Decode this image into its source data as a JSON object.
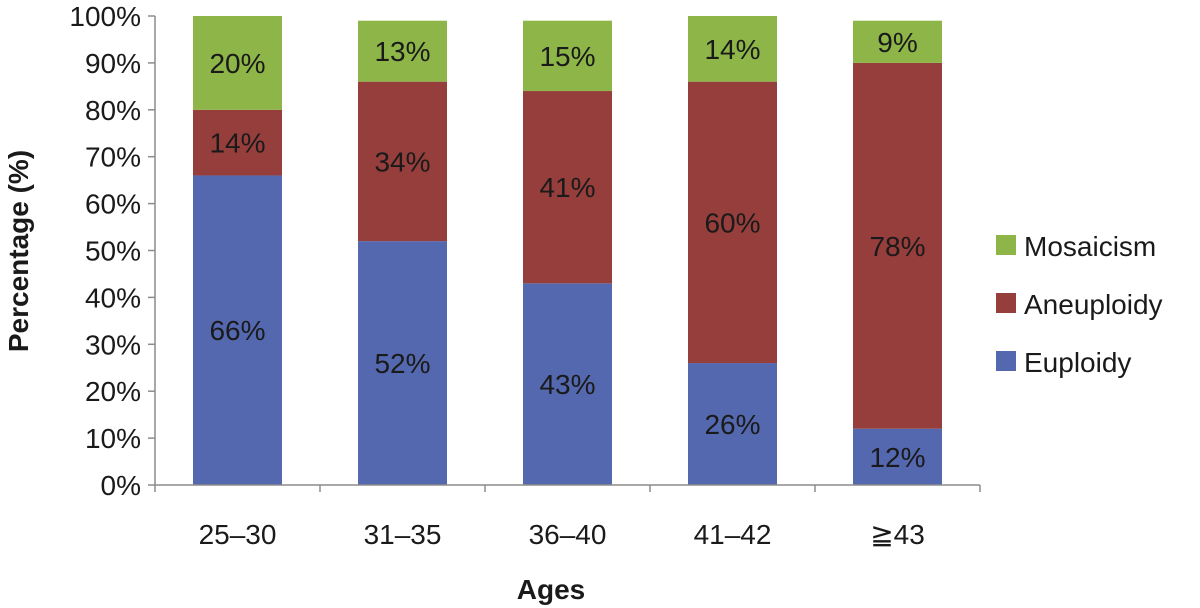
{
  "chart_data": {
    "type": "bar",
    "stacked": true,
    "categories": [
      "25–30",
      "31–35",
      "36–40",
      "41–42",
      "≧43"
    ],
    "series": [
      {
        "name": "Euploidy",
        "values": [
          66,
          52,
          43,
          26,
          12
        ],
        "labels": [
          "66%",
          "52%",
          "43%",
          "26%",
          "12%"
        ],
        "color": "#5468B0"
      },
      {
        "name": "Aneuploidy",
        "values": [
          14,
          34,
          41,
          60,
          78
        ],
        "labels": [
          "14%",
          "34%",
          "41%",
          "60%",
          "78%"
        ],
        "color": "#953E3C"
      },
      {
        "name": "Mosaicism",
        "values": [
          20,
          13,
          15,
          14,
          9
        ],
        "labels": [
          "20%",
          "13%",
          "15%",
          "14%",
          "9%"
        ],
        "color": "#8DB548"
      }
    ],
    "xlabel": "Ages",
    "ylabel": "Percentage (%)",
    "ylim": [
      0,
      100
    ],
    "yticks": [
      0,
      10,
      20,
      30,
      40,
      50,
      60,
      70,
      80,
      90,
      100
    ],
    "ytick_labels": [
      "0%",
      "10%",
      "20%",
      "30%",
      "40%",
      "50%",
      "60%",
      "70%",
      "80%",
      "90%",
      "100%"
    ],
    "legend": {
      "position": "right",
      "order": [
        "Mosaicism",
        "Aneuploidy",
        "Euploidy"
      ]
    },
    "grid": false
  }
}
